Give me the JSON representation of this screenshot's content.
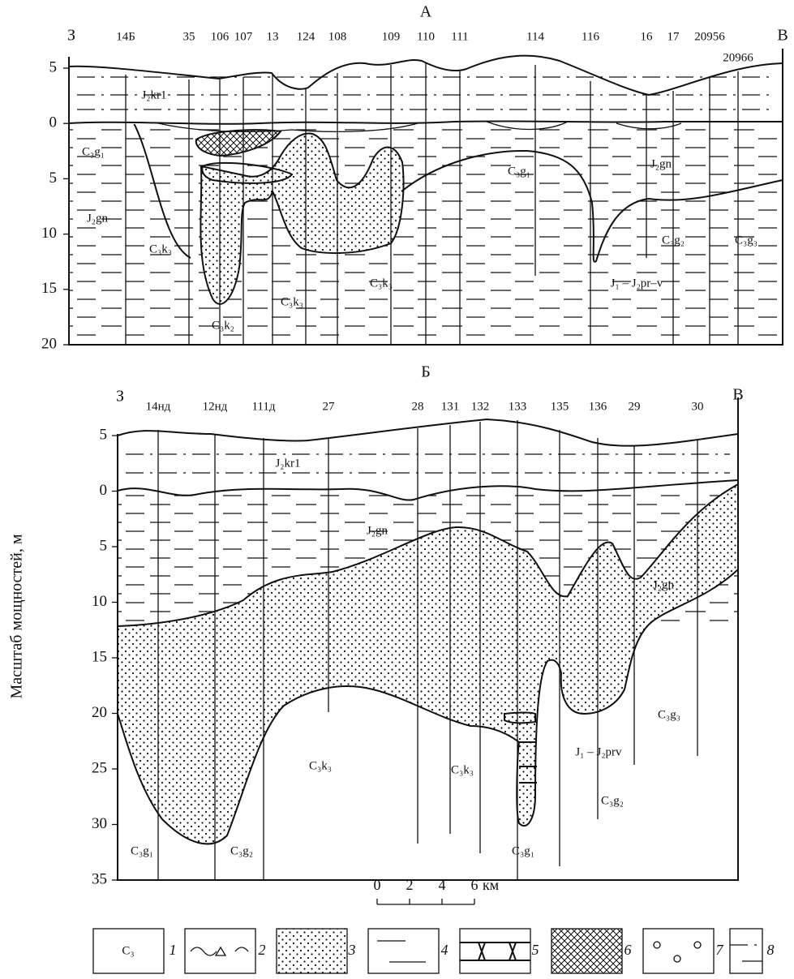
{
  "panel_a": {
    "title": "А",
    "left": "З",
    "right": "В",
    "wells": [
      "14Б",
      "35",
      "106",
      "107",
      "13",
      "124",
      "108",
      "109",
      "110",
      "111",
      "114",
      "116",
      "16",
      "17",
      "20956",
      "20966"
    ],
    "depth_ticks": [
      "5",
      "0",
      "5",
      "10",
      "15",
      "20"
    ],
    "units": [
      "J₂kr1",
      "C₃g₁",
      "J₂gn",
      "C₃k₃",
      "C₃k₂",
      "C₃k₃",
      "C₃k₃",
      "C₃g₁",
      "J₂gn",
      "C₃g₂",
      "C₃g₃",
      "J₁ – J₂pr–v"
    ]
  },
  "panel_b": {
    "title": "Б",
    "left": "З",
    "right": "В",
    "wells": [
      "14нд",
      "12нд",
      "111д",
      "27",
      "28",
      "131",
      "132",
      "133",
      "135",
      "136",
      "29",
      "30"
    ],
    "depth_ticks": [
      "5",
      "0",
      "5",
      "10",
      "15",
      "20",
      "25",
      "30",
      "35"
    ],
    "units": [
      "J₂kr1",
      "J₂gn",
      "J₂gn",
      "C₃k₃",
      "C₃k₃",
      "C₃g₁",
      "C₃g₂",
      "C₃g₁",
      "C₃g₃",
      "C₃g₂",
      "J₁ – J₂prv"
    ]
  },
  "axis_title": "Масштаб мощностей, м",
  "scale_bar": {
    "ticks": [
      "0",
      "2",
      "4",
      "6"
    ],
    "unit": "км"
  },
  "legend": [
    {
      "symbol": "C₃",
      "number": "1"
    },
    {
      "number": "2"
    },
    {
      "number": "3"
    },
    {
      "number": "4"
    },
    {
      "number": "5"
    },
    {
      "number": "6"
    },
    {
      "number": "7"
    },
    {
      "number": "8"
    }
  ]
}
